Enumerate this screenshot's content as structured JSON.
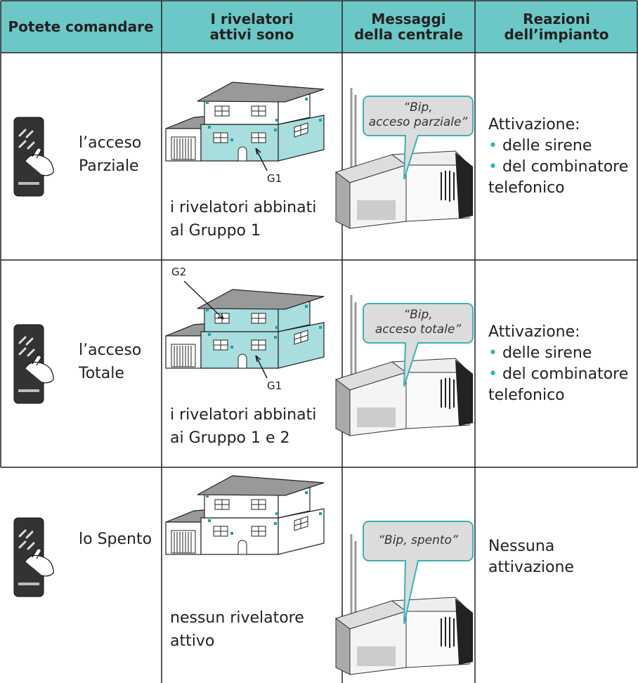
{
  "header": {
    "columns": [
      [
        "Potete comandare"
      ],
      [
        "I rivelatori",
        "attivi sono"
      ],
      [
        "Messaggi",
        "della centrale"
      ],
      [
        "Reazioni",
        "dell’impianto"
      ]
    ]
  },
  "rows": [
    {
      "command": [
        "l’acceso",
        "Parziale"
      ],
      "groups": [
        "G1"
      ],
      "detectors": [
        "i rivelatori abbinati",
        "al Gruppo 1"
      ],
      "message": [
        "“Bip,",
        "acceso parziale”"
      ],
      "reaction": {
        "title": "Attivazione:",
        "items": [
          "delle sirene",
          "del combinatore telefonico"
        ]
      }
    },
    {
      "command": [
        "l’acceso",
        "Totale"
      ],
      "groups": [
        "G2",
        "G1"
      ],
      "detectors": [
        "i rivelatori abbinati",
        "ai Gruppo 1 e 2"
      ],
      "message": [
        "“Bip,",
        "acceso totale”"
      ],
      "reaction": {
        "title": "Attivazione:",
        "items": [
          "delle sirene",
          "del combinatore telefonico"
        ]
      }
    },
    {
      "command": [
        "lo Spento"
      ],
      "detectors": [
        "nessun rivelatore",
        "attivo"
      ],
      "message": [
        "“Bip, spento”"
      ],
      "reaction": {
        "lines": [
          "Nessuna",
          "attivazione"
        ]
      }
    }
  ]
}
